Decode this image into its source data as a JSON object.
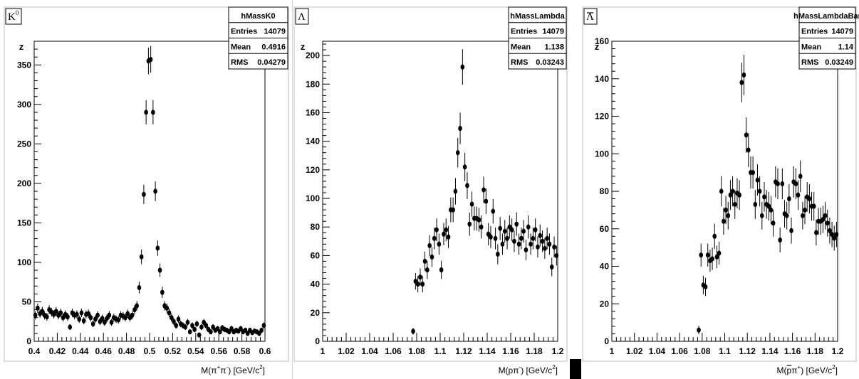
{
  "chart_data": [
    {
      "type": "scatter",
      "title_label": "K",
      "title_sup": "0",
      "ylabel": "z",
      "xlabel_main": "M(π",
      "xlabel_sup1": "+",
      "xlabel_mid": "π",
      "xlabel_sup2": "-",
      "xlabel_tail": ") [GeV/c",
      "xlabel_sup3": "2",
      "xlabel_end": "]",
      "xlim": [
        0.4,
        0.6
      ],
      "ylim": [
        0,
        380
      ],
      "xticks": [
        "0.4",
        "0.42",
        "0.44",
        "0.46",
        "0.48",
        "0.5",
        "0.52",
        "0.54",
        "0.56",
        "0.58",
        "0.6"
      ],
      "xtick_values": [
        0.4,
        0.42,
        0.44,
        0.46,
        0.48,
        0.5,
        0.52,
        0.54,
        0.56,
        0.58,
        0.6
      ],
      "yticks": [
        "0",
        "50",
        "100",
        "150",
        "200",
        "250",
        "300",
        "350"
      ],
      "ytick_values": [
        0,
        50,
        100,
        150,
        200,
        250,
        300,
        350
      ],
      "stats": {
        "name": "hMassK0",
        "rows": [
          {
            "label": "Entries",
            "value": "14079"
          },
          {
            "label": "Mean",
            "value": "0.4916"
          },
          {
            "label": "RMS",
            "value": "0.04279"
          }
        ]
      },
      "points": [
        [
          0.401,
          33
        ],
        [
          0.403,
          42
        ],
        [
          0.405,
          35
        ],
        [
          0.407,
          38
        ],
        [
          0.409,
          33
        ],
        [
          0.411,
          31
        ],
        [
          0.413,
          40
        ],
        [
          0.415,
          37
        ],
        [
          0.417,
          34
        ],
        [
          0.419,
          38
        ],
        [
          0.421,
          33
        ],
        [
          0.423,
          36
        ],
        [
          0.425,
          30
        ],
        [
          0.427,
          34
        ],
        [
          0.429,
          31
        ],
        [
          0.431,
          18
        ],
        [
          0.433,
          36
        ],
        [
          0.435,
          33
        ],
        [
          0.437,
          34
        ],
        [
          0.439,
          28
        ],
        [
          0.441,
          36
        ],
        [
          0.443,
          26
        ],
        [
          0.445,
          34
        ],
        [
          0.447,
          35
        ],
        [
          0.449,
          30
        ],
        [
          0.451,
          22
        ],
        [
          0.453,
          28
        ],
        [
          0.455,
          33
        ],
        [
          0.457,
          25
        ],
        [
          0.459,
          29
        ],
        [
          0.461,
          24
        ],
        [
          0.463,
          29
        ],
        [
          0.465,
          33
        ],
        [
          0.467,
          24
        ],
        [
          0.469,
          30
        ],
        [
          0.471,
          28
        ],
        [
          0.473,
          27
        ],
        [
          0.475,
          33
        ],
        [
          0.477,
          32
        ],
        [
          0.479,
          30
        ],
        [
          0.481,
          35
        ],
        [
          0.483,
          30
        ],
        [
          0.485,
          33
        ],
        [
          0.487,
          40
        ],
        [
          0.489,
          45
        ],
        [
          0.491,
          68
        ],
        [
          0.493,
          107
        ],
        [
          0.495,
          186
        ],
        [
          0.497,
          290
        ],
        [
          0.499,
          355
        ],
        [
          0.501,
          357
        ],
        [
          0.503,
          290
        ],
        [
          0.505,
          190
        ],
        [
          0.507,
          118
        ],
        [
          0.509,
          90
        ],
        [
          0.511,
          62
        ],
        [
          0.513,
          45
        ],
        [
          0.515,
          42
        ],
        [
          0.517,
          36
        ],
        [
          0.519,
          30
        ],
        [
          0.521,
          25
        ],
        [
          0.523,
          20
        ],
        [
          0.525,
          28
        ],
        [
          0.527,
          22
        ],
        [
          0.529,
          20
        ],
        [
          0.531,
          18
        ],
        [
          0.533,
          24
        ],
        [
          0.535,
          12
        ],
        [
          0.537,
          20
        ],
        [
          0.539,
          15
        ],
        [
          0.541,
          22
        ],
        [
          0.543,
          8
        ],
        [
          0.545,
          18
        ],
        [
          0.547,
          24
        ],
        [
          0.549,
          20
        ],
        [
          0.551,
          15
        ],
        [
          0.553,
          12
        ],
        [
          0.555,
          18
        ],
        [
          0.557,
          14
        ],
        [
          0.559,
          16
        ],
        [
          0.561,
          12
        ],
        [
          0.563,
          17
        ],
        [
          0.565,
          15
        ],
        [
          0.567,
          14
        ],
        [
          0.569,
          12
        ],
        [
          0.571,
          16
        ],
        [
          0.573,
          12
        ],
        [
          0.575,
          14
        ],
        [
          0.577,
          13
        ],
        [
          0.579,
          16
        ],
        [
          0.581,
          12
        ],
        [
          0.583,
          14
        ],
        [
          0.585,
          10
        ],
        [
          0.587,
          14
        ],
        [
          0.589,
          11
        ],
        [
          0.591,
          13
        ],
        [
          0.593,
          12
        ],
        [
          0.595,
          10
        ],
        [
          0.597,
          14
        ],
        [
          0.599,
          20
        ]
      ]
    },
    {
      "type": "scatter",
      "title_label": "Λ",
      "ylabel": "z",
      "xlabel_main": "M(pπ",
      "xlabel_sup1": "-",
      "xlabel_tail": ") [GeV/c",
      "xlabel_sup3": "2",
      "xlabel_end": "]",
      "xlim": [
        1.0,
        1.2
      ],
      "ylim": [
        0,
        210
      ],
      "xticks": [
        "1",
        "1.02",
        "1.04",
        "1.06",
        "1.08",
        "1.1",
        "1.12",
        "1.14",
        "1.16",
        "1.18",
        "1.2"
      ],
      "xtick_values": [
        1.0,
        1.02,
        1.04,
        1.06,
        1.08,
        1.1,
        1.12,
        1.14,
        1.16,
        1.18,
        1.2
      ],
      "yticks": [
        "0",
        "20",
        "40",
        "60",
        "80",
        "100",
        "120",
        "140",
        "160",
        "180",
        "200"
      ],
      "ytick_values": [
        0,
        20,
        40,
        60,
        80,
        100,
        120,
        140,
        160,
        180,
        200
      ],
      "stats": {
        "name": "hMassLambda",
        "rows": [
          {
            "label": "Entries",
            "value": "14079"
          },
          {
            "label": "Mean",
            "value": "1.138"
          },
          {
            "label": "RMS",
            "value": "0.03243"
          }
        ]
      },
      "points": [
        [
          1.077,
          7
        ],
        [
          1.079,
          42
        ],
        [
          1.081,
          40
        ],
        [
          1.083,
          45
        ],
        [
          1.085,
          40
        ],
        [
          1.087,
          56
        ],
        [
          1.089,
          50
        ],
        [
          1.091,
          67
        ],
        [
          1.093,
          59
        ],
        [
          1.095,
          72
        ],
        [
          1.097,
          78
        ],
        [
          1.099,
          68
        ],
        [
          1.101,
          50
        ],
        [
          1.103,
          75
        ],
        [
          1.105,
          78
        ],
        [
          1.107,
          73
        ],
        [
          1.109,
          92
        ],
        [
          1.111,
          92
        ],
        [
          1.113,
          105
        ],
        [
          1.115,
          132
        ],
        [
          1.117,
          149
        ],
        [
          1.119,
          192
        ],
        [
          1.121,
          122
        ],
        [
          1.123,
          109
        ],
        [
          1.125,
          82
        ],
        [
          1.127,
          96
        ],
        [
          1.129,
          86
        ],
        [
          1.131,
          86
        ],
        [
          1.133,
          85
        ],
        [
          1.135,
          80
        ],
        [
          1.137,
          106
        ],
        [
          1.139,
          98
        ],
        [
          1.141,
          75
        ],
        [
          1.143,
          73
        ],
        [
          1.145,
          91
        ],
        [
          1.147,
          72
        ],
        [
          1.149,
          61
        ],
        [
          1.151,
          79
        ],
        [
          1.153,
          68
        ],
        [
          1.155,
          77
        ],
        [
          1.157,
          72
        ],
        [
          1.159,
          80
        ],
        [
          1.161,
          78
        ],
        [
          1.163,
          70
        ],
        [
          1.165,
          82
        ],
        [
          1.167,
          68
        ],
        [
          1.169,
          72
        ],
        [
          1.171,
          77
        ],
        [
          1.173,
          64
        ],
        [
          1.175,
          80
        ],
        [
          1.177,
          68
        ],
        [
          1.179,
          72
        ],
        [
          1.181,
          78
        ],
        [
          1.183,
          66
        ],
        [
          1.185,
          74
        ],
        [
          1.187,
          70
        ],
        [
          1.189,
          65
        ],
        [
          1.191,
          72
        ],
        [
          1.193,
          68
        ],
        [
          1.195,
          52
        ],
        [
          1.197,
          66
        ],
        [
          1.199,
          60
        ]
      ]
    },
    {
      "type": "scatter",
      "title_label": "Λ",
      "title_bar": true,
      "ylabel": "z",
      "xlabel_main": "M(",
      "xlabel_bar": "p",
      "xlabel_mid": "π",
      "xlabel_sup1": "+",
      "xlabel_tail": ") [GeV/c",
      "xlabel_sup3": "2",
      "xlabel_end": "]",
      "xlim": [
        1.0,
        1.2
      ],
      "ylim": [
        0,
        160
      ],
      "xticks": [
        "1",
        "1.02",
        "1.04",
        "1.06",
        "1.08",
        "1.1",
        "1.12",
        "1.14",
        "1.16",
        "1.18",
        "1.2"
      ],
      "xtick_values": [
        1.0,
        1.02,
        1.04,
        1.06,
        1.08,
        1.1,
        1.12,
        1.14,
        1.16,
        1.18,
        1.2
      ],
      "yticks": [
        "0",
        "20",
        "40",
        "60",
        "80",
        "100",
        "120",
        "140",
        "160"
      ],
      "ytick_values": [
        0,
        20,
        40,
        60,
        80,
        100,
        120,
        140,
        160
      ],
      "stats": {
        "name": "hMassLambdaBar",
        "rows": [
          {
            "label": "Entries",
            "value": "14079"
          },
          {
            "label": "Mean",
            "value": "1.14"
          },
          {
            "label": "RMS",
            "value": "0.03249"
          }
        ]
      },
      "points": [
        [
          1.077,
          6
        ],
        [
          1.079,
          46
        ],
        [
          1.081,
          30
        ],
        [
          1.083,
          29
        ],
        [
          1.085,
          46
        ],
        [
          1.087,
          43
        ],
        [
          1.089,
          44
        ],
        [
          1.091,
          56
        ],
        [
          1.093,
          45
        ],
        [
          1.095,
          47
        ],
        [
          1.097,
          80
        ],
        [
          1.099,
          64
        ],
        [
          1.101,
          70
        ],
        [
          1.103,
          67
        ],
        [
          1.105,
          78
        ],
        [
          1.107,
          80
        ],
        [
          1.109,
          73
        ],
        [
          1.111,
          79
        ],
        [
          1.113,
          78
        ],
        [
          1.115,
          138
        ],
        [
          1.117,
          142
        ],
        [
          1.119,
          110
        ],
        [
          1.121,
          102
        ],
        [
          1.123,
          90
        ],
        [
          1.125,
          90
        ],
        [
          1.127,
          73
        ],
        [
          1.129,
          86
        ],
        [
          1.131,
          80
        ],
        [
          1.133,
          67
        ],
        [
          1.135,
          77
        ],
        [
          1.137,
          73
        ],
        [
          1.139,
          72
        ],
        [
          1.141,
          70
        ],
        [
          1.143,
          63
        ],
        [
          1.145,
          85
        ],
        [
          1.147,
          84
        ],
        [
          1.149,
          54
        ],
        [
          1.151,
          84
        ],
        [
          1.153,
          68
        ],
        [
          1.155,
          67
        ],
        [
          1.157,
          76
        ],
        [
          1.159,
          59
        ],
        [
          1.161,
          85
        ],
        [
          1.163,
          84
        ],
        [
          1.165,
          78
        ],
        [
          1.167,
          88
        ],
        [
          1.169,
          67
        ],
        [
          1.171,
          70
        ],
        [
          1.173,
          77
        ],
        [
          1.175,
          76
        ],
        [
          1.177,
          72
        ],
        [
          1.179,
          72
        ],
        [
          1.181,
          58
        ],
        [
          1.183,
          64
        ],
        [
          1.185,
          64
        ],
        [
          1.187,
          65
        ],
        [
          1.189,
          67
        ],
        [
          1.191,
          63
        ],
        [
          1.193,
          59
        ],
        [
          1.195,
          57
        ],
        [
          1.197,
          55
        ],
        [
          1.199,
          57
        ]
      ]
    }
  ]
}
